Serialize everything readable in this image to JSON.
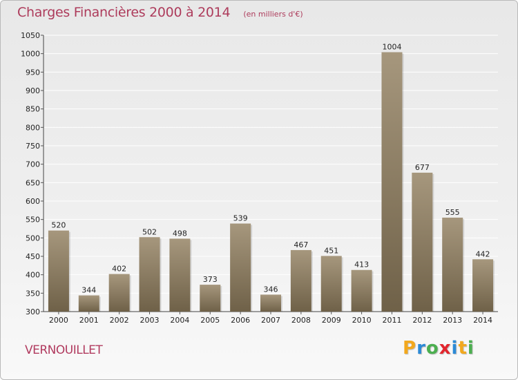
{
  "title": "Charges Financières 2000 à 2014",
  "subtitle": "(en milliers d'€)",
  "location": "VERNOUILLET",
  "logo": {
    "letters": [
      "P",
      "r",
      "o",
      "x",
      "i",
      "t",
      "i"
    ],
    "colors": [
      "#f2a81d",
      "#2b8ad6",
      "#4caf50",
      "#e2262e",
      "#2b8ad6",
      "#f2a81d",
      "#4caf50"
    ]
  },
  "colors": {
    "title": "#ad3b5b",
    "bar_light": "#a6977d",
    "bar_dark": "#6f6148",
    "grid": "#ffffff"
  },
  "chart_data": {
    "type": "bar",
    "title": "Charges Financières 2000 à 2014",
    "subtitle": "(en milliers d'€)",
    "xlabel": "",
    "ylabel": "",
    "categories": [
      "2000",
      "2001",
      "2002",
      "2003",
      "2004",
      "2005",
      "2006",
      "2007",
      "2008",
      "2009",
      "2010",
      "2011",
      "2012",
      "2013",
      "2014"
    ],
    "values": [
      520,
      344,
      402,
      502,
      498,
      373,
      539,
      346,
      467,
      451,
      413,
      1004,
      677,
      555,
      442
    ],
    "ylim": [
      300,
      1050
    ],
    "yticks": [
      300,
      350,
      400,
      450,
      500,
      550,
      600,
      650,
      700,
      750,
      800,
      850,
      900,
      950,
      1000,
      1050
    ],
    "grid": true,
    "data_labels": true
  }
}
